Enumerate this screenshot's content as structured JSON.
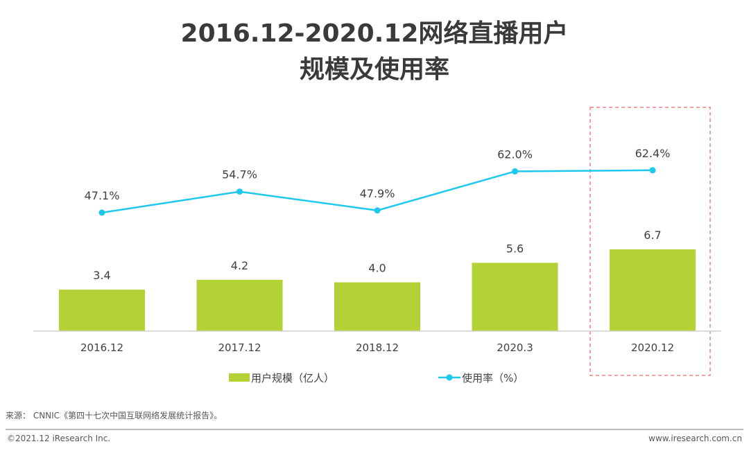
{
  "title_line1": "2016.12-2020.12网络直播用户",
  "title_line2": "规模及使用率",
  "chart_data": {
    "type": "bar+line",
    "categories": [
      "2016.12",
      "2017.12",
      "2018.12",
      "2020.3",
      "2020.12"
    ],
    "series": [
      {
        "name": "用户规模（亿人）",
        "type": "bar",
        "values": [
          3.4,
          4.2,
          4.0,
          5.6,
          6.7
        ],
        "labels": [
          "3.4",
          "4.2",
          "4.0",
          "5.6",
          "6.7"
        ],
        "color": "#b2d235"
      },
      {
        "name": "使用率（%）",
        "type": "line",
        "values": [
          47.1,
          54.7,
          47.9,
          62.0,
          62.4
        ],
        "labels": [
          "47.1%",
          "54.7%",
          "47.9%",
          "62.0%",
          "62.4%"
        ],
        "color": "#1ec8ec"
      }
    ],
    "highlight_category": "2020.12",
    "highlight_color": "#f08080",
    "legend_position": "bottom",
    "grid": false
  },
  "source": "来源： CNNIC《第四十七次中国互联网络发展统计报告》。",
  "copyright": "©2021.12 iResearch Inc.",
  "website": "www.iresearch.com.cn"
}
